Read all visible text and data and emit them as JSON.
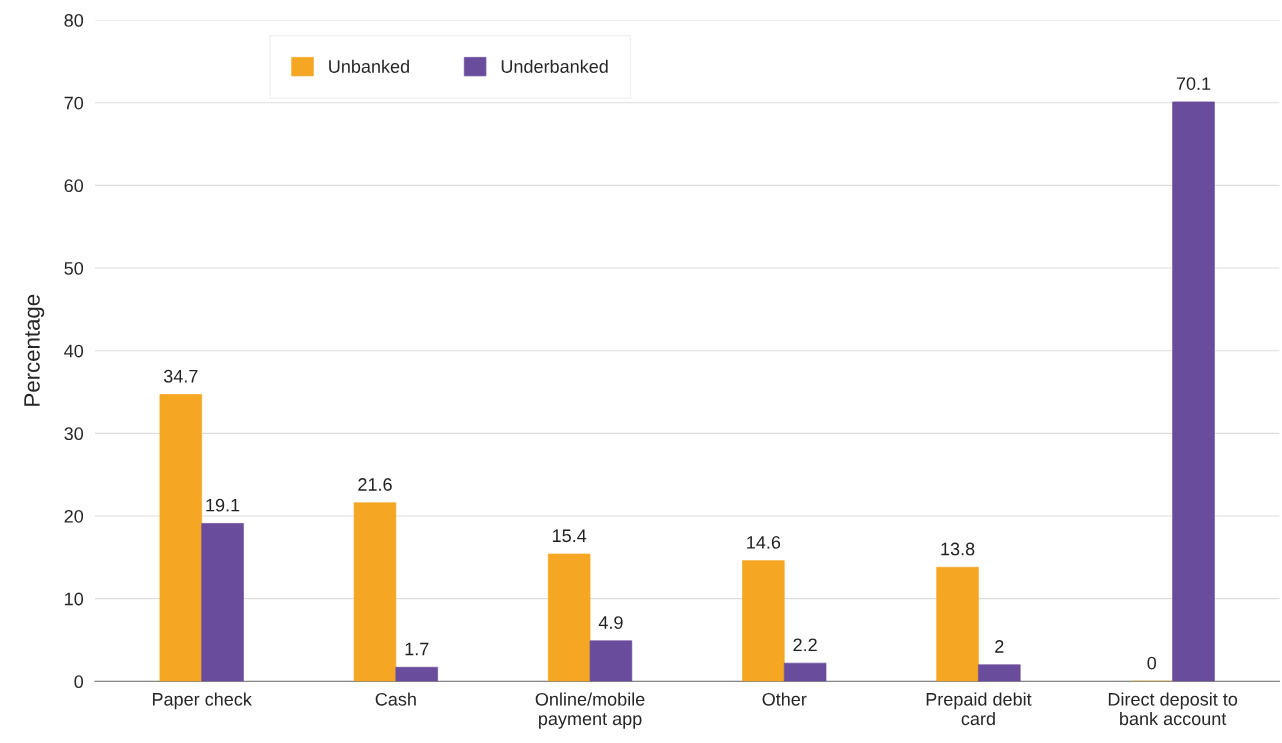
{
  "chart_data": {
    "type": "bar",
    "ylabel": "Percentage",
    "categories": [
      "Paper check",
      "Cash",
      "Online/mobile\npayment app",
      "Other",
      "Prepaid debit\ncard",
      "Direct deposit to\nbank account"
    ],
    "series": [
      {
        "name": "Unbanked",
        "color": "#f5a623",
        "values": [
          34.7,
          21.6,
          15.4,
          14.6,
          13.8,
          0
        ]
      },
      {
        "name": "Underbanked",
        "color": "#6a4c9c",
        "values": [
          19.1,
          1.7,
          4.9,
          2.2,
          2,
          70.1
        ]
      }
    ],
    "ylim": [
      0,
      80
    ],
    "yticks": [
      0,
      10,
      20,
      30,
      40,
      50,
      60,
      70,
      80
    ],
    "grid": "y",
    "legend": "top",
    "data_labels": true
  }
}
